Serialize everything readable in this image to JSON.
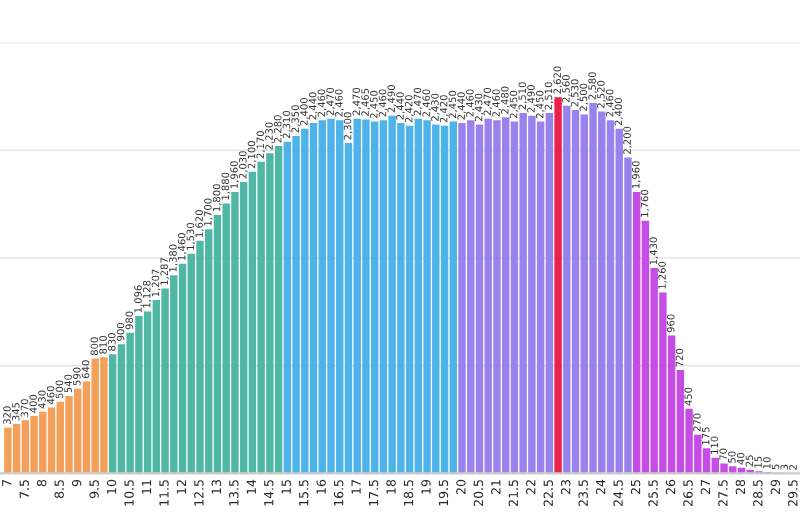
{
  "chart_data": {
    "type": "bar",
    "categories": [
      "7",
      null,
      "7.5",
      null,
      "8",
      null,
      "8.5",
      null,
      "9",
      null,
      "9.5",
      null,
      "10",
      null,
      "10.5",
      null,
      "11",
      null,
      "11.5",
      null,
      "12",
      null,
      "12.5",
      null,
      "13",
      null,
      "13.5",
      null,
      "14",
      null,
      "14.5",
      null,
      "15",
      null,
      "15.5",
      null,
      "16",
      null,
      "16.5",
      null,
      "17",
      null,
      "17.5",
      null,
      "18",
      null,
      "18.5",
      null,
      "19",
      null,
      "19.5",
      null,
      "20",
      null,
      "20.5",
      null,
      "21",
      null,
      "21.5",
      null,
      "22",
      null,
      "22.5",
      null,
      "23",
      null,
      "23.5",
      null,
      "24",
      null,
      "24.5",
      null,
      "25",
      null,
      "25.5",
      null,
      "26",
      null,
      "26.5",
      null,
      "27",
      null,
      "27.5",
      null,
      "28",
      null,
      "28.5",
      null,
      "29",
      null,
      "29.5"
    ],
    "values": [
      320,
      345,
      370,
      400,
      430,
      460,
      500,
      540,
      590,
      640,
      800,
      810,
      830,
      900,
      980,
      1096,
      1128,
      1207,
      1287,
      1380,
      1460,
      1530,
      1620,
      1700,
      1800,
      1880,
      1960,
      2030,
      2100,
      2170,
      2230,
      2280,
      2310,
      2350,
      2400,
      2440,
      2460,
      2470,
      2460,
      2300,
      2470,
      2465,
      2450,
      2460,
      2490,
      2440,
      2420,
      2470,
      2460,
      2430,
      2420,
      2450,
      2440,
      2460,
      2430,
      2470,
      2460,
      2480,
      2450,
      2510,
      2490,
      2450,
      2510,
      2620,
      2560,
      2530,
      2500,
      2580,
      2520,
      2460,
      2400,
      2200,
      1960,
      1760,
      1430,
      1260,
      960,
      720,
      450,
      270,
      175,
      110,
      70,
      50,
      40,
      25,
      15,
      10,
      5,
      3,
      2
    ],
    "colors": [
      "#f5a05a",
      "#f5a05a",
      "#f5a05a",
      "#f5a05a",
      "#f5a05a",
      "#f5a05a",
      "#f5a05a",
      "#f5a05a",
      "#f5a05a",
      "#f5a05a",
      "#f5a05a",
      "#f5a05a",
      "#4fb7a3",
      "#4fb7a3",
      "#4fb7a3",
      "#4fb7a3",
      "#4fb7a3",
      "#4fb7a3",
      "#4fb7a3",
      "#4fb7a3",
      "#4fb7a3",
      "#4fb7a3",
      "#4fb7a3",
      "#4fb7a3",
      "#4fb7a3",
      "#4fb7a3",
      "#4fb7a3",
      "#4fb7a3",
      "#4fb7a3",
      "#4fb7a3",
      "#4fb7a3",
      "#4fb7a3",
      "#4db3ea",
      "#4db3ea",
      "#4db3ea",
      "#4db3ea",
      "#4db3ea",
      "#4db3ea",
      "#4db3ea",
      "#4db3ea",
      "#4db3ea",
      "#4db3ea",
      "#4db3ea",
      "#4db3ea",
      "#4db3ea",
      "#4db3ea",
      "#4db3ea",
      "#4db3ea",
      "#4db3ea",
      "#4db3ea",
      "#4db3ea",
      "#4db3ea",
      "#9a82ee",
      "#9a82ee",
      "#9a82ee",
      "#9a82ee",
      "#9a82ee",
      "#9a82ee",
      "#9a82ee",
      "#9a82ee",
      "#9a82ee",
      "#9a82ee",
      "#9a82ee",
      "#e8224a",
      "#9a82ee",
      "#9a82ee",
      "#9a82ee",
      "#9a82ee",
      "#9a82ee",
      "#9a82ee",
      "#9a82ee",
      "#9a82ee",
      "#c54de6",
      "#c54de6",
      "#c54de6",
      "#c54de6",
      "#c54de6",
      "#c54de6",
      "#c54de6",
      "#c54de6",
      "#c54de6",
      "#c54de6",
      "#c54de6",
      "#c54de6",
      "#c54de6",
      "#c54de6",
      "#c54de6",
      "#c54de6",
      "#c54de6",
      "#c54de6",
      "#c54de6"
    ],
    "ylim": [
      0,
      3000
    ],
    "yticks": [
      {
        "value": 0,
        "label": null
      },
      {
        "value": 750,
        "label": null
      },
      {
        "value": 1500,
        "label": null
      },
      {
        "value": 2250,
        "label": null
      },
      {
        "value": 3000,
        "label": null
      }
    ],
    "tick_labels": "x",
    "grid": "y",
    "value_labels": [
      "320",
      "345",
      "370",
      "400",
      "430",
      "460",
      "500",
      "540",
      "590",
      "640",
      "800",
      "810",
      "830",
      "900",
      "980",
      "1,096",
      "1,128",
      "1,207",
      "1,287",
      "1,380",
      "1,460",
      "1,530",
      "1,620",
      "1,700",
      "1,800",
      "1,880",
      "1,960",
      "2,030",
      "2,100",
      "2,170",
      "2,230",
      "2,280",
      "2,310",
      "2,350",
      "2,400",
      "2,440",
      "2,460",
      "2,470",
      "2,460",
      "2,300",
      "2,470",
      "2,465",
      "2,450",
      "2,460",
      "2,490",
      "2,440",
      "2,420",
      "2,470",
      "2,460",
      "2,430",
      "2,420",
      "2,450",
      "2,440",
      "2,460",
      "2,430",
      "2,470",
      "2,460",
      "2,480",
      "2,450",
      "2,510",
      "2,490",
      "2,450",
      "2,510",
      "2,620",
      "2,560",
      "2,530",
      "2,500",
      "2,580",
      "2,520",
      "2,460",
      "2,400",
      "2,200",
      "1,960",
      "1,760",
      "1,430",
      "1,260",
      "960",
      "720",
      "450",
      "270",
      "175",
      "110",
      "70",
      "50",
      "40",
      "25",
      "15",
      "10",
      "5",
      "3",
      "2"
    ]
  }
}
